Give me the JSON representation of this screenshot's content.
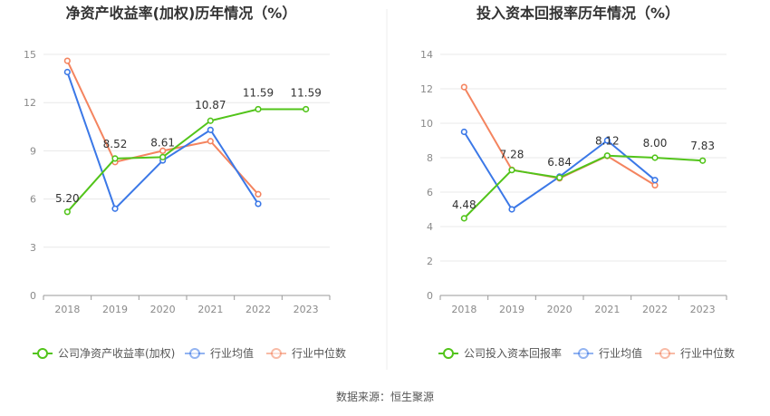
{
  "chart_data": [
    {
      "type": "line",
      "title": "净资产收益率(加权)历年情况（%）",
      "categories": [
        "2018",
        "2019",
        "2020",
        "2021",
        "2022",
        "2023"
      ],
      "ylim": [
        0,
        15
      ],
      "yticks": [
        0,
        3,
        6,
        9,
        12,
        15
      ],
      "grid": true,
      "legend_position": "bottom",
      "series": [
        {
          "name": "公司净资产收益率(加权)",
          "color": "#52c41a",
          "values": [
            5.2,
            8.52,
            8.61,
            10.87,
            11.59,
            11.59
          ],
          "labels": [
            "5.20",
            "8.52",
            "8.61",
            "10.87",
            "11.59",
            "11.59"
          ]
        },
        {
          "name": "行业均值",
          "color": "#3b78e7",
          "values": [
            13.9,
            5.4,
            8.4,
            10.3,
            5.7,
            null
          ]
        },
        {
          "name": "行业中位数",
          "color": "#f4845f",
          "values": [
            14.6,
            8.3,
            9.0,
            9.6,
            6.3,
            null
          ]
        }
      ]
    },
    {
      "type": "line",
      "title": "投入资本回报率历年情况（%）",
      "categories": [
        "2018",
        "2019",
        "2020",
        "2021",
        "2022",
        "2023"
      ],
      "ylim": [
        0,
        14
      ],
      "yticks": [
        0,
        2,
        4,
        6,
        8,
        10,
        12,
        14
      ],
      "grid": true,
      "legend_position": "bottom",
      "series": [
        {
          "name": "公司投入资本回报率",
          "color": "#52c41a",
          "values": [
            4.48,
            7.28,
            6.84,
            8.12,
            8.0,
            7.83
          ],
          "labels": [
            "4.48",
            "7.28",
            "6.84",
            "8.12",
            "8.00",
            "7.83"
          ]
        },
        {
          "name": "行业均值",
          "color": "#3b78e7",
          "values": [
            9.5,
            5.0,
            6.9,
            9.0,
            6.7,
            null
          ]
        },
        {
          "name": "行业中位数",
          "color": "#f4845f",
          "values": [
            12.1,
            7.3,
            6.8,
            8.1,
            6.4,
            null
          ]
        }
      ]
    }
  ],
  "source_text": "数据来源：恒生聚源"
}
